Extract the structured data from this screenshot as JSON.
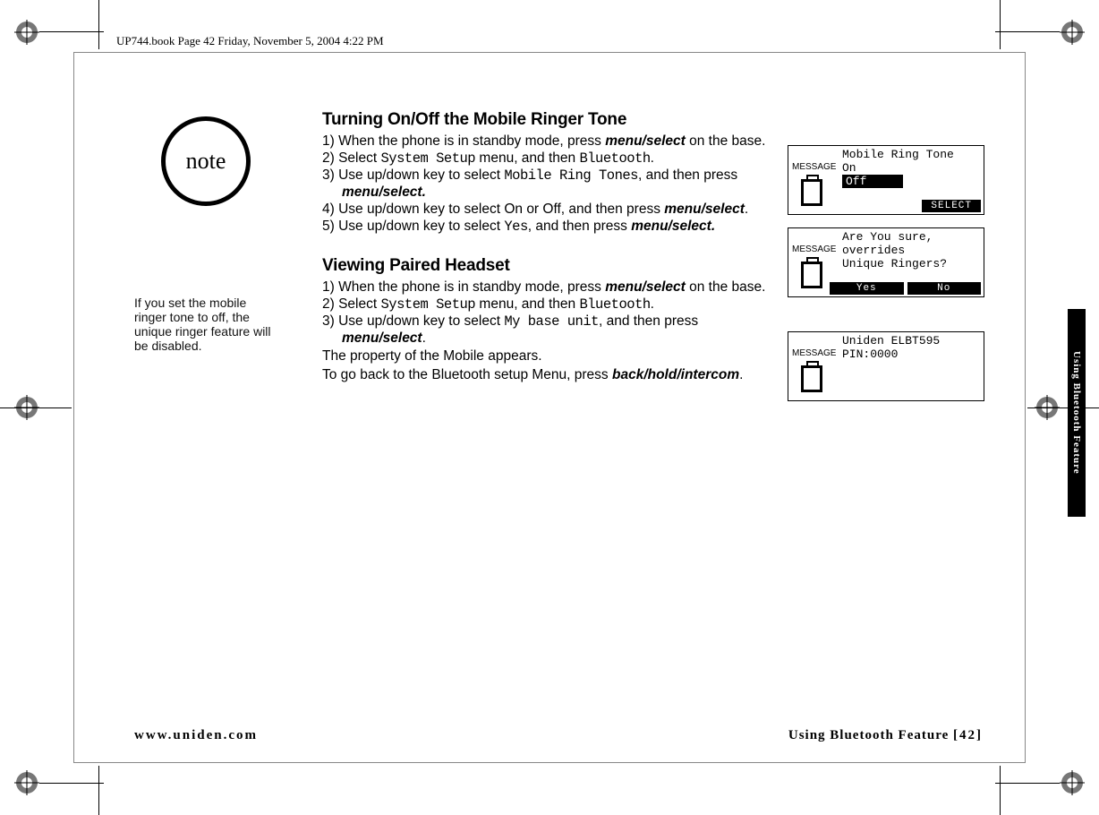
{
  "colors": {
    "text": "#000000",
    "bg": "#ffffff",
    "tab_bg": "#000000",
    "tab_text": "#ffffff",
    "frame": "#888888"
  },
  "header": "UP744.book  Page 42  Friday, November 5, 2004  4:22 PM",
  "side_tab": "Using Bluetooth Feature",
  "note": {
    "badge": "note",
    "text": "If you set the mobile ringer tone to off, the unique ringer feature will be disabled."
  },
  "section1": {
    "title": "Turning On/Off the Mobile Ringer Tone",
    "steps": [
      {
        "n": "1)",
        "pre": "When the phone is in standby mode, press ",
        "bi": "menu/select",
        "post": " on the base."
      },
      {
        "n": "2)",
        "pre": "Select ",
        "lcd": "System Setup",
        "mid": " menu, and then ",
        "lcd2": "Bluetooth",
        "post": "."
      },
      {
        "n": "3)",
        "pre": "Use up/down key to select ",
        "lcd": "Mobile Ring Tones",
        "mid": ", and then press ",
        "bi": "menu/select.",
        "post": ""
      },
      {
        "n": "4)",
        "pre": "Use up/down key to select On or Off, and then press ",
        "bi": "menu/select",
        "post": "."
      },
      {
        "n": "5)",
        "pre": "Use up/down key to select ",
        "lcd": "Yes",
        "mid": ", and then press ",
        "bi": "menu/select.",
        "post": ""
      }
    ]
  },
  "section2": {
    "title": "Viewing Paired Headset",
    "steps": [
      {
        "n": "1)",
        "pre": "When the phone is in standby mode, press ",
        "bi": "menu/select",
        "post": " on the base."
      },
      {
        "n": "2)",
        "pre": "Select ",
        "lcd": "System Setup",
        "mid": " menu, and then ",
        "lcd2": "Bluetooth",
        "post": "."
      },
      {
        "n": "3)",
        "pre": "Use up/down key to select ",
        "lcd": "My base unit",
        "mid": ", and then press ",
        "bi": "menu/select",
        "post": "."
      }
    ],
    "tail1": "The property of the Mobile appears.",
    "tail2_pre": "To go back to the Bluetooth setup Menu, press ",
    "tail2_bi": "back/hold/intercom",
    "tail2_post": "."
  },
  "screens": {
    "s1": {
      "msg": "MESSAGE",
      "l1": "Mobile Ring Tone",
      "l2": "On",
      "l3_hl": "Off",
      "soft_right": "SELECT"
    },
    "s2": {
      "msg": "MESSAGE",
      "l1": "Are You sure,",
      "l2": "overrides",
      "l3": "Unique Ringers?",
      "soft_yes": "Yes",
      "soft_no": "No"
    },
    "s3": {
      "msg": "MESSAGE",
      "l1": "Uniden ELBT595",
      "l2": "",
      "l3": "PIN:0000"
    }
  },
  "footer": {
    "left": "www.uniden.com",
    "right_label": "Using Bluetooth Feature",
    "right_page": "[42]"
  }
}
